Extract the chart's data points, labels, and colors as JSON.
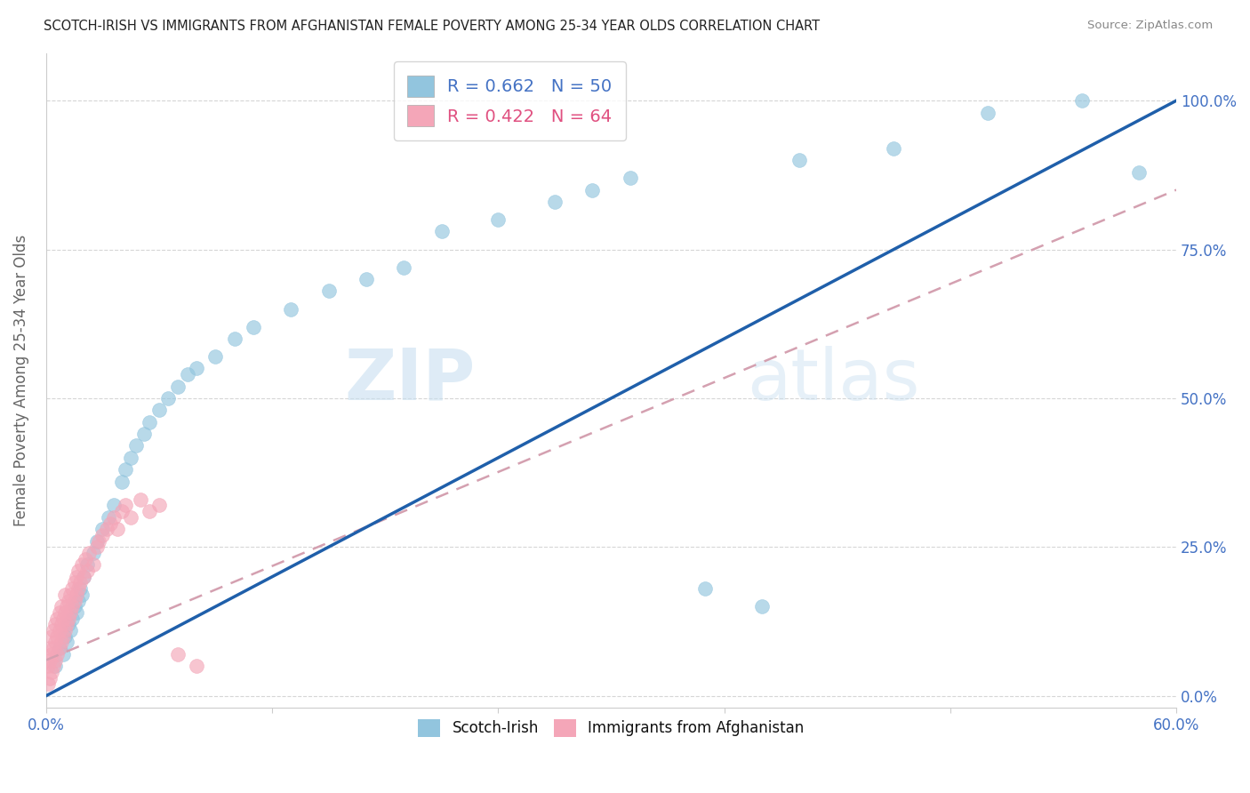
{
  "title": "SCOTCH-IRISH VS IMMIGRANTS FROM AFGHANISTAN FEMALE POVERTY AMONG 25-34 YEAR OLDS CORRELATION CHART",
  "source": "Source: ZipAtlas.com",
  "ylabel": "Female Poverty Among 25-34 Year Olds",
  "ytick_labels": [
    "0.0%",
    "25.0%",
    "50.0%",
    "75.0%",
    "100.0%"
  ],
  "ytick_values": [
    0.0,
    0.25,
    0.5,
    0.75,
    1.0
  ],
  "xlim": [
    0.0,
    0.6
  ],
  "ylim": [
    -0.02,
    1.08
  ],
  "legend_r1": "R = 0.662",
  "legend_n1": "N = 50",
  "legend_r2": "R = 0.422",
  "legend_n2": "N = 64",
  "color_blue": "#92c5de",
  "color_pink": "#f4a6b8",
  "color_blue_line": "#1f5faa",
  "color_pink_line": "#d4a0b0",
  "watermark_zip": "ZIP",
  "watermark_atlas": "atlas",
  "scotch_irish_x": [
    0.005,
    0.007,
    0.009,
    0.01,
    0.011,
    0.012,
    0.013,
    0.014,
    0.015,
    0.016,
    0.017,
    0.018,
    0.019,
    0.02,
    0.022,
    0.025,
    0.027,
    0.03,
    0.033,
    0.036,
    0.04,
    0.042,
    0.045,
    0.048,
    0.052,
    0.055,
    0.06,
    0.065,
    0.07,
    0.075,
    0.08,
    0.09,
    0.1,
    0.11,
    0.13,
    0.15,
    0.17,
    0.19,
    0.21,
    0.24,
    0.27,
    0.29,
    0.31,
    0.35,
    0.38,
    0.4,
    0.45,
    0.5,
    0.55,
    0.58
  ],
  "scotch_irish_y": [
    0.05,
    0.08,
    0.07,
    0.1,
    0.09,
    0.12,
    0.11,
    0.13,
    0.15,
    0.14,
    0.16,
    0.18,
    0.17,
    0.2,
    0.22,
    0.24,
    0.26,
    0.28,
    0.3,
    0.32,
    0.36,
    0.38,
    0.4,
    0.42,
    0.44,
    0.46,
    0.48,
    0.5,
    0.52,
    0.54,
    0.55,
    0.57,
    0.6,
    0.62,
    0.65,
    0.68,
    0.7,
    0.72,
    0.78,
    0.8,
    0.83,
    0.85,
    0.87,
    0.18,
    0.15,
    0.9,
    0.92,
    0.98,
    1.0,
    0.88
  ],
  "afghanistan_x": [
    0.001,
    0.001,
    0.002,
    0.002,
    0.002,
    0.003,
    0.003,
    0.003,
    0.004,
    0.004,
    0.004,
    0.005,
    0.005,
    0.005,
    0.006,
    0.006,
    0.006,
    0.007,
    0.007,
    0.007,
    0.008,
    0.008,
    0.008,
    0.009,
    0.009,
    0.01,
    0.01,
    0.01,
    0.011,
    0.011,
    0.012,
    0.012,
    0.013,
    0.013,
    0.014,
    0.014,
    0.015,
    0.015,
    0.016,
    0.016,
    0.017,
    0.017,
    0.018,
    0.019,
    0.02,
    0.021,
    0.022,
    0.023,
    0.025,
    0.027,
    0.028,
    0.03,
    0.032,
    0.034,
    0.036,
    0.038,
    0.04,
    0.042,
    0.045,
    0.05,
    0.055,
    0.06,
    0.07,
    0.08
  ],
  "afghanistan_y": [
    0.02,
    0.05,
    0.03,
    0.06,
    0.08,
    0.04,
    0.07,
    0.1,
    0.05,
    0.08,
    0.11,
    0.06,
    0.09,
    0.12,
    0.07,
    0.1,
    0.13,
    0.08,
    0.11,
    0.14,
    0.09,
    0.12,
    0.15,
    0.1,
    0.13,
    0.11,
    0.14,
    0.17,
    0.12,
    0.15,
    0.13,
    0.16,
    0.14,
    0.17,
    0.15,
    0.18,
    0.16,
    0.19,
    0.17,
    0.2,
    0.18,
    0.21,
    0.19,
    0.22,
    0.2,
    0.23,
    0.21,
    0.24,
    0.22,
    0.25,
    0.26,
    0.27,
    0.28,
    0.29,
    0.3,
    0.28,
    0.31,
    0.32,
    0.3,
    0.33,
    0.31,
    0.32,
    0.07,
    0.05
  ],
  "blue_line_x0": 0.0,
  "blue_line_y0": 0.0,
  "blue_line_x1": 0.6,
  "blue_line_y1": 1.0,
  "pink_line_x0": 0.0,
  "pink_line_y0": 0.06,
  "pink_line_x1": 0.6,
  "pink_line_y1": 0.85
}
